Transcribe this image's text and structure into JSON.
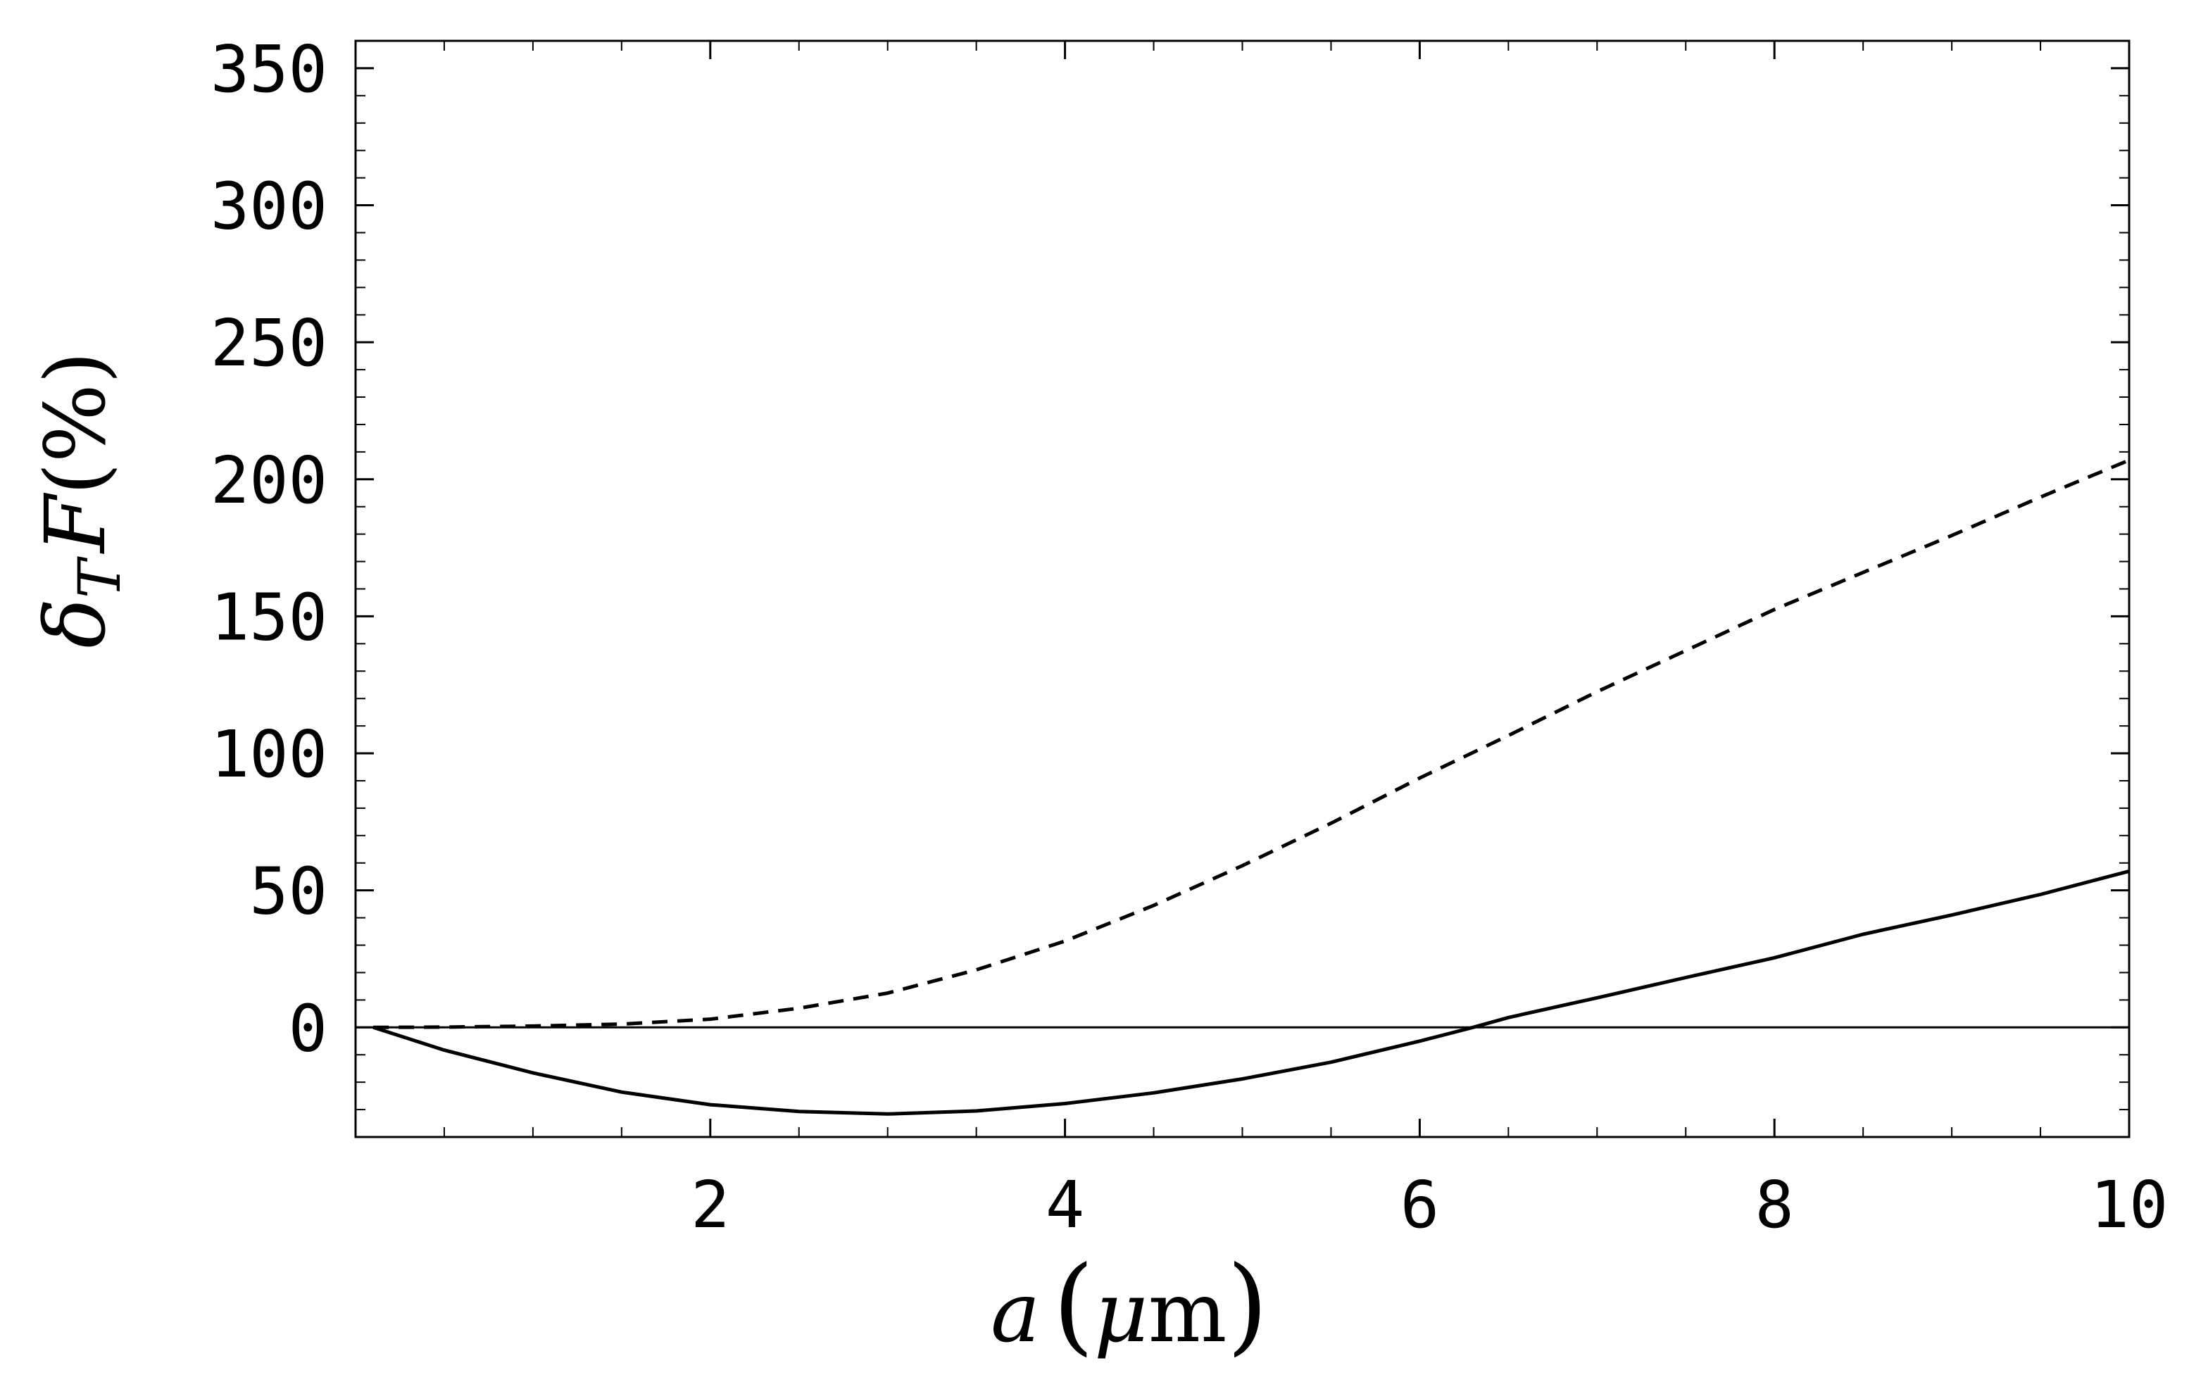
{
  "chart_data": {
    "type": "line",
    "title": "",
    "xlabel": {
      "var": "a",
      "unit_open": "(",
      "unit_mu": "μ",
      "unit_m": "m",
      "unit_close": ")"
    },
    "ylabel": {
      "delta": "δ",
      "sub": "T",
      "var": "F",
      "pct": "(%)"
    },
    "xlim": [
      0.0,
      10.0
    ],
    "ylim": [
      -40,
      360
    ],
    "xticks": [
      2,
      4,
      6,
      8,
      10
    ],
    "yticks": [
      0,
      50,
      100,
      150,
      200,
      250,
      300,
      350
    ],
    "xtick_labels": [
      "2",
      "4",
      "6",
      "8",
      "10"
    ],
    "ytick_labels": [
      "0",
      "50",
      "100",
      "150",
      "200",
      "250",
      "300",
      "350"
    ],
    "grid": false,
    "legend": "none",
    "reference_line": {
      "y": 0
    },
    "series": [
      {
        "style": "solid",
        "color": "#000000",
        "x": [
          0.1,
          0.5,
          1.0,
          1.5,
          2.0,
          2.5,
          3.0,
          3.5,
          4.0,
          4.5,
          5.0,
          5.5,
          6.0,
          6.3,
          6.5,
          7.0,
          7.5,
          8.0,
          8.5,
          9.0,
          9.5,
          10.0
        ],
        "y": [
          0,
          -8.3,
          -16.6,
          -23.6,
          -28.2,
          -30.7,
          -31.6,
          -30.5,
          -27.8,
          -23.9,
          -18.8,
          -12.7,
          -5.0,
          0,
          3.6,
          10.8,
          18.2,
          25.4,
          34.0,
          41.0,
          48.5,
          57.0
        ]
      },
      {
        "style": "dashed",
        "color": "#000000",
        "x": [
          0.1,
          0.5,
          1.0,
          1.5,
          2.0,
          2.5,
          3.0,
          3.5,
          4.0,
          4.5,
          5.0,
          5.5,
          6.0,
          6.5,
          7.0,
          7.5,
          8.0,
          8.5,
          9.0,
          9.5,
          10.0
        ],
        "y": [
          0,
          0.1,
          0.5,
          1.2,
          3.0,
          7.0,
          12.5,
          21.0,
          31.5,
          44.5,
          59.0,
          74.5,
          91.0,
          106.5,
          122.5,
          137.5,
          152.5,
          166.0,
          179.5,
          193.5,
          207.0
        ]
      }
    ]
  }
}
